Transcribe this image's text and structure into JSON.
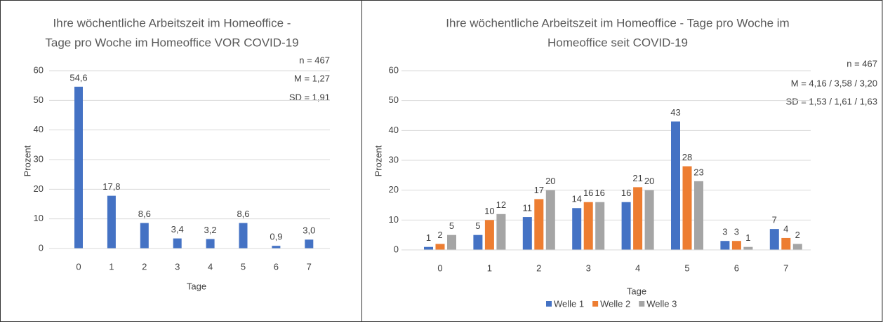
{
  "chart_data": [
    {
      "type": "bar",
      "title": [
        "Ihre wöchentliche Arbeitszeit im Homeoffice -",
        "Tage pro Woche im Homeoffice VOR COVID-19"
      ],
      "annotations": [
        "n = 467",
        "M = 1,27",
        "SD = 1,91"
      ],
      "x_label": "Tage",
      "y_label": "Prozent",
      "categories": [
        "0",
        "1",
        "2",
        "3",
        "4",
        "5",
        "6",
        "7"
      ],
      "values": [
        54.6,
        17.8,
        8.6,
        3.4,
        3.2,
        8.6,
        0.9,
        3.0
      ],
      "value_labels": [
        "54,6",
        "17,8",
        "8,6",
        "3,4",
        "3,2",
        "8,6",
        "0,9",
        "3,0"
      ],
      "color": "#4472c4",
      "ylim": [
        0,
        60
      ],
      "yticks": [
        0,
        10,
        20,
        30,
        40,
        50,
        60
      ],
      "grid": true
    },
    {
      "type": "grouped_bar",
      "title": [
        "Ihre wöchentliche Arbeitszeit im Homeoffice - Tage pro Woche im",
        "Homeoffice seit COVID-19"
      ],
      "annotations": [
        "n = 467",
        "M = 4,16 / 3,58 / 3,20",
        "SD = 1,53 / 1,61 / 1,63"
      ],
      "x_label": "Tage",
      "y_label": "Prozent",
      "categories": [
        "0",
        "1",
        "2",
        "3",
        "4",
        "5",
        "6",
        "7"
      ],
      "series": [
        {
          "name": "Welle 1",
          "color": "#4472c4",
          "values": [
            1,
            5,
            11,
            14,
            16,
            43,
            3,
            7
          ]
        },
        {
          "name": "Welle 2",
          "color": "#ed7d31",
          "values": [
            2,
            10,
            17,
            16,
            21,
            28,
            3,
            4
          ]
        },
        {
          "name": "Welle 3",
          "color": "#a5a5a5",
          "values": [
            5,
            12,
            20,
            16,
            20,
            23,
            1,
            2
          ]
        }
      ],
      "ylim": [
        0,
        60
      ],
      "yticks": [
        0,
        10,
        20,
        30,
        40,
        50,
        60
      ],
      "grid": true,
      "legend": "bottom"
    }
  ]
}
